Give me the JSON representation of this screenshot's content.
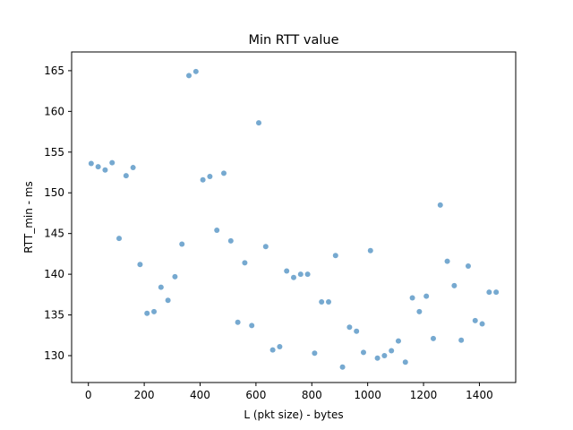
{
  "chart_data": {
    "type": "scatter",
    "title": "Min RTT value",
    "xlabel": "L (pkt size) - bytes",
    "ylabel": "RTT_min - ms",
    "xlim": [
      -60,
      1530
    ],
    "ylim": [
      126.7,
      167.3
    ],
    "xticks": [
      0,
      200,
      400,
      600,
      800,
      1000,
      1200,
      1400
    ],
    "yticks": [
      130,
      135,
      140,
      145,
      150,
      155,
      160,
      165
    ],
    "grid": false,
    "legend": "none",
    "marker_color": "#76a9d0",
    "series": [
      {
        "points": [
          [
            10,
            153.6
          ],
          [
            35,
            153.2
          ],
          [
            60,
            152.8
          ],
          [
            85,
            153.7
          ],
          [
            110,
            144.4
          ],
          [
            135,
            152.1
          ],
          [
            160,
            153.1
          ],
          [
            185,
            141.2
          ],
          [
            210,
            135.2
          ],
          [
            235,
            135.4
          ],
          [
            260,
            138.4
          ],
          [
            285,
            136.8
          ],
          [
            310,
            139.7
          ],
          [
            335,
            143.7
          ],
          [
            360,
            164.4
          ],
          [
            385,
            164.9
          ],
          [
            410,
            151.6
          ],
          [
            435,
            152.0
          ],
          [
            460,
            145.4
          ],
          [
            485,
            152.4
          ],
          [
            510,
            144.1
          ],
          [
            535,
            134.1
          ],
          [
            560,
            141.4
          ],
          [
            585,
            133.7
          ],
          [
            610,
            158.6
          ],
          [
            635,
            143.4
          ],
          [
            660,
            130.7
          ],
          [
            685,
            131.1
          ],
          [
            710,
            140.4
          ],
          [
            735,
            139.6
          ],
          [
            760,
            140.0
          ],
          [
            785,
            140.0
          ],
          [
            810,
            130.3
          ],
          [
            835,
            136.6
          ],
          [
            860,
            136.6
          ],
          [
            885,
            142.3
          ],
          [
            910,
            128.6
          ],
          [
            935,
            133.5
          ],
          [
            960,
            133.0
          ],
          [
            985,
            130.4
          ],
          [
            1010,
            142.9
          ],
          [
            1035,
            129.7
          ],
          [
            1060,
            130.0
          ],
          [
            1085,
            130.6
          ],
          [
            1110,
            131.8
          ],
          [
            1135,
            129.2
          ],
          [
            1160,
            137.1
          ],
          [
            1185,
            135.4
          ],
          [
            1210,
            137.3
          ],
          [
            1235,
            132.1
          ],
          [
            1260,
            148.5
          ],
          [
            1285,
            141.6
          ],
          [
            1310,
            138.6
          ],
          [
            1335,
            131.9
          ],
          [
            1360,
            141.0
          ],
          [
            1385,
            134.3
          ],
          [
            1410,
            133.9
          ],
          [
            1435,
            137.8
          ],
          [
            1460,
            137.8
          ]
        ]
      }
    ]
  }
}
